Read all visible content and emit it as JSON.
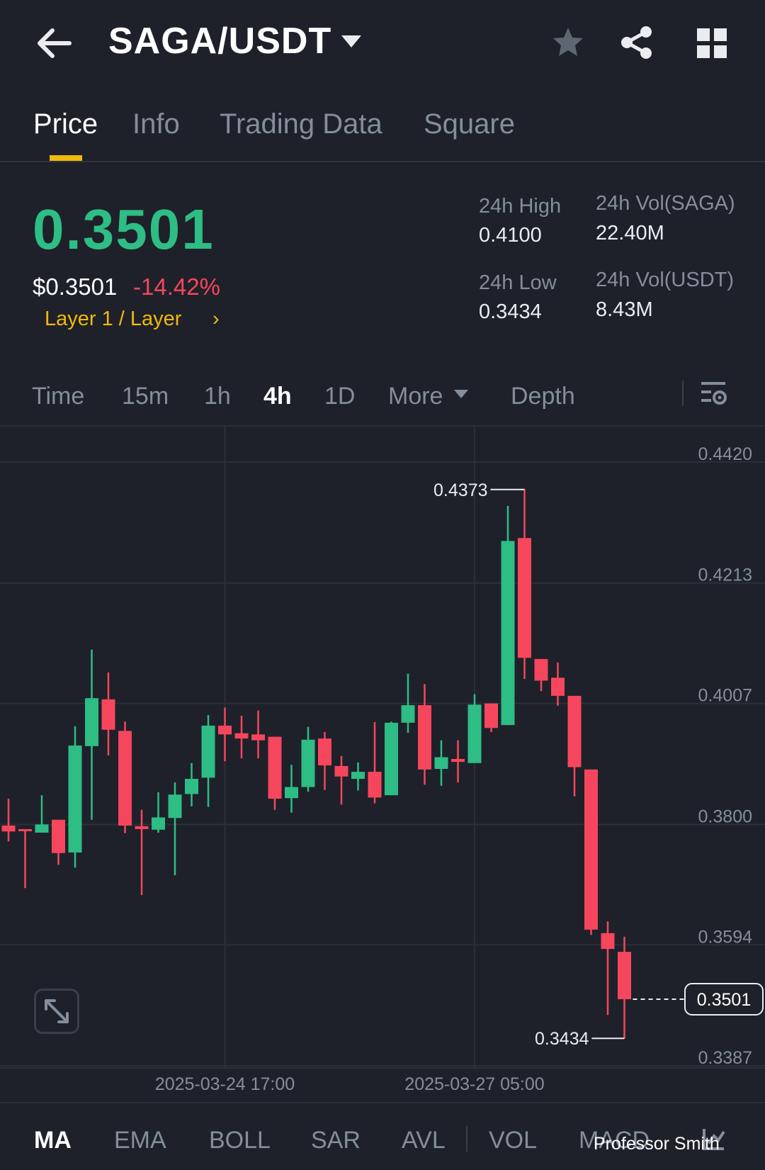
{
  "header": {
    "pair": "SAGA/USDT"
  },
  "tabs": [
    {
      "label": "Price"
    },
    {
      "label": "Info"
    },
    {
      "label": "Trading Data"
    },
    {
      "label": "Square"
    }
  ],
  "price": {
    "last": "0.3501",
    "usd": "$0.3501",
    "change": "-14.42%",
    "tag": "Layer 1 / Layer",
    "tag_chevron": "›"
  },
  "stats": {
    "high_label": "24h High",
    "high_value": "0.4100",
    "low_label": "24h Low",
    "low_value": "0.3434",
    "vol_base_label": "24h Vol(SAGA)",
    "vol_base_value": "22.40M",
    "vol_quote_label": "24h Vol(USDT)",
    "vol_quote_value": "8.43M"
  },
  "timeframes": [
    {
      "label": "Time"
    },
    {
      "label": "15m"
    },
    {
      "label": "1h"
    },
    {
      "label": "4h"
    },
    {
      "label": "1D"
    },
    {
      "label": "More"
    },
    {
      "label": "Depth"
    }
  ],
  "indicators": [
    {
      "label": "MA"
    },
    {
      "label": "EMA"
    },
    {
      "label": "BOLL"
    },
    {
      "label": "SAR"
    },
    {
      "label": "AVL"
    },
    {
      "label": "VOL"
    },
    {
      "label": "MACD"
    }
  ],
  "watermark": "Professor Smith",
  "colors": {
    "up": "#2ebd85",
    "down": "#f6465d",
    "accent": "#f0b90b"
  },
  "chart_data": {
    "type": "candlestick",
    "interval": "4h",
    "y_ticks": [
      "0.4420",
      "0.4213",
      "0.4007",
      "0.3800",
      "0.3594",
      "0.3387"
    ],
    "ylim": [
      0.3387,
      0.442
    ],
    "x_tick_labels": [
      "2025-03-24 17:00",
      "2025-03-27 05:00"
    ],
    "x_tick_index": [
      13,
      28
    ],
    "high_label": "0.4373",
    "low_label": "0.3434",
    "last_price_label": "0.3501",
    "candles": [
      {
        "o": 0.3798,
        "h": 0.3844,
        "l": 0.3771,
        "c": 0.3788
      },
      {
        "o": 0.3792,
        "h": 0.3792,
        "l": 0.3691,
        "c": 0.379
      },
      {
        "o": 0.3786,
        "h": 0.385,
        "l": 0.3786,
        "c": 0.38
      },
      {
        "o": 0.3808,
        "h": 0.3808,
        "l": 0.3731,
        "c": 0.3751
      },
      {
        "o": 0.3752,
        "h": 0.3968,
        "l": 0.3726,
        "c": 0.3935
      },
      {
        "o": 0.3934,
        "h": 0.4099,
        "l": 0.3808,
        "c": 0.4016
      },
      {
        "o": 0.4014,
        "h": 0.406,
        "l": 0.3918,
        "c": 0.3962
      },
      {
        "o": 0.396,
        "h": 0.3976,
        "l": 0.3785,
        "c": 0.3798
      },
      {
        "o": 0.3797,
        "h": 0.3825,
        "l": 0.3679,
        "c": 0.3792
      },
      {
        "o": 0.3791,
        "h": 0.3855,
        "l": 0.3786,
        "c": 0.3812
      },
      {
        "o": 0.3811,
        "h": 0.3872,
        "l": 0.3713,
        "c": 0.3851
      },
      {
        "o": 0.3852,
        "h": 0.3905,
        "l": 0.3831,
        "c": 0.3878
      },
      {
        "o": 0.388,
        "h": 0.3987,
        "l": 0.383,
        "c": 0.3969
      },
      {
        "o": 0.3969,
        "h": 0.4,
        "l": 0.3908,
        "c": 0.3954
      },
      {
        "o": 0.3956,
        "h": 0.3986,
        "l": 0.3913,
        "c": 0.3947
      },
      {
        "o": 0.3954,
        "h": 0.3995,
        "l": 0.3913,
        "c": 0.3944
      },
      {
        "o": 0.395,
        "h": 0.395,
        "l": 0.3825,
        "c": 0.3844
      },
      {
        "o": 0.3845,
        "h": 0.3902,
        "l": 0.382,
        "c": 0.3864
      },
      {
        "o": 0.3864,
        "h": 0.3967,
        "l": 0.3856,
        "c": 0.3945
      },
      {
        "o": 0.3947,
        "h": 0.3958,
        "l": 0.3859,
        "c": 0.3901
      },
      {
        "o": 0.39,
        "h": 0.3917,
        "l": 0.3834,
        "c": 0.3882
      },
      {
        "o": 0.3878,
        "h": 0.3906,
        "l": 0.3858,
        "c": 0.389
      },
      {
        "o": 0.389,
        "h": 0.3975,
        "l": 0.3836,
        "c": 0.3846
      },
      {
        "o": 0.385,
        "h": 0.3976,
        "l": 0.385,
        "c": 0.3974
      },
      {
        "o": 0.3974,
        "h": 0.4058,
        "l": 0.3957,
        "c": 0.4004
      },
      {
        "o": 0.4004,
        "h": 0.404,
        "l": 0.3868,
        "c": 0.3894
      },
      {
        "o": 0.3895,
        "h": 0.3944,
        "l": 0.3866,
        "c": 0.3915
      },
      {
        "o": 0.3912,
        "h": 0.3944,
        "l": 0.3872,
        "c": 0.3907
      },
      {
        "o": 0.3905,
        "h": 0.4023,
        "l": 0.3905,
        "c": 0.4005
      },
      {
        "o": 0.4007,
        "h": 0.4007,
        "l": 0.3958,
        "c": 0.3965
      },
      {
        "o": 0.397,
        "h": 0.4345,
        "l": 0.397,
        "c": 0.4285
      },
      {
        "o": 0.429,
        "h": 0.4373,
        "l": 0.4049,
        "c": 0.4085
      },
      {
        "o": 0.4083,
        "h": 0.4083,
        "l": 0.4028,
        "c": 0.4046
      },
      {
        "o": 0.4051,
        "h": 0.4077,
        "l": 0.4003,
        "c": 0.402
      },
      {
        "o": 0.402,
        "h": 0.402,
        "l": 0.3848,
        "c": 0.3898
      },
      {
        "o": 0.3894,
        "h": 0.3894,
        "l": 0.3611,
        "c": 0.362
      },
      {
        "o": 0.3614,
        "h": 0.3634,
        "l": 0.3474,
        "c": 0.3587
      },
      {
        "o": 0.3582,
        "h": 0.3608,
        "l": 0.3434,
        "c": 0.3501
      }
    ]
  }
}
